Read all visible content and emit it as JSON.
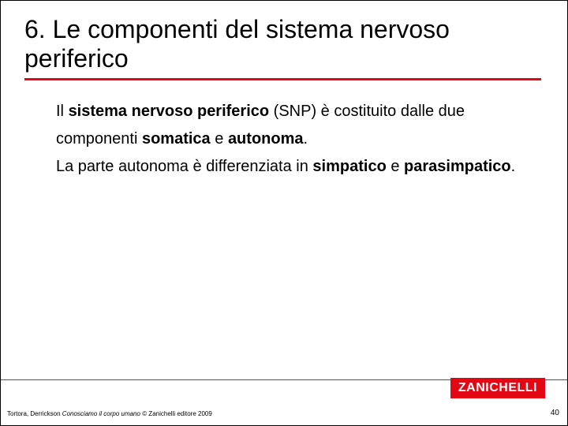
{
  "title": "6. Le componenti del sistema nervoso periferico",
  "body": {
    "p1_a": "Il ",
    "p1_b": "sistema nervoso periferico",
    "p1_c": " (SNP) è costituito dalle due componenti ",
    "p1_d": "somatica",
    "p1_e": " e ",
    "p1_f": "autonoma",
    "p1_g": ".",
    "p2_a": "La parte autonoma è differenziata in ",
    "p2_b": "simpatico",
    "p2_c": " e ",
    "p2_d": "parasimpatico",
    "p2_e": "."
  },
  "footer": {
    "citation_authors": "Tortora, Derrickson ",
    "citation_title": "Conosciamo il corpo umano",
    "citation_rest": " © Zanichelli editore 2009",
    "page": "40",
    "logo": "ZANICHELLI"
  },
  "colors": {
    "accent": "#e30613",
    "text": "#000000",
    "background": "#ffffff"
  }
}
